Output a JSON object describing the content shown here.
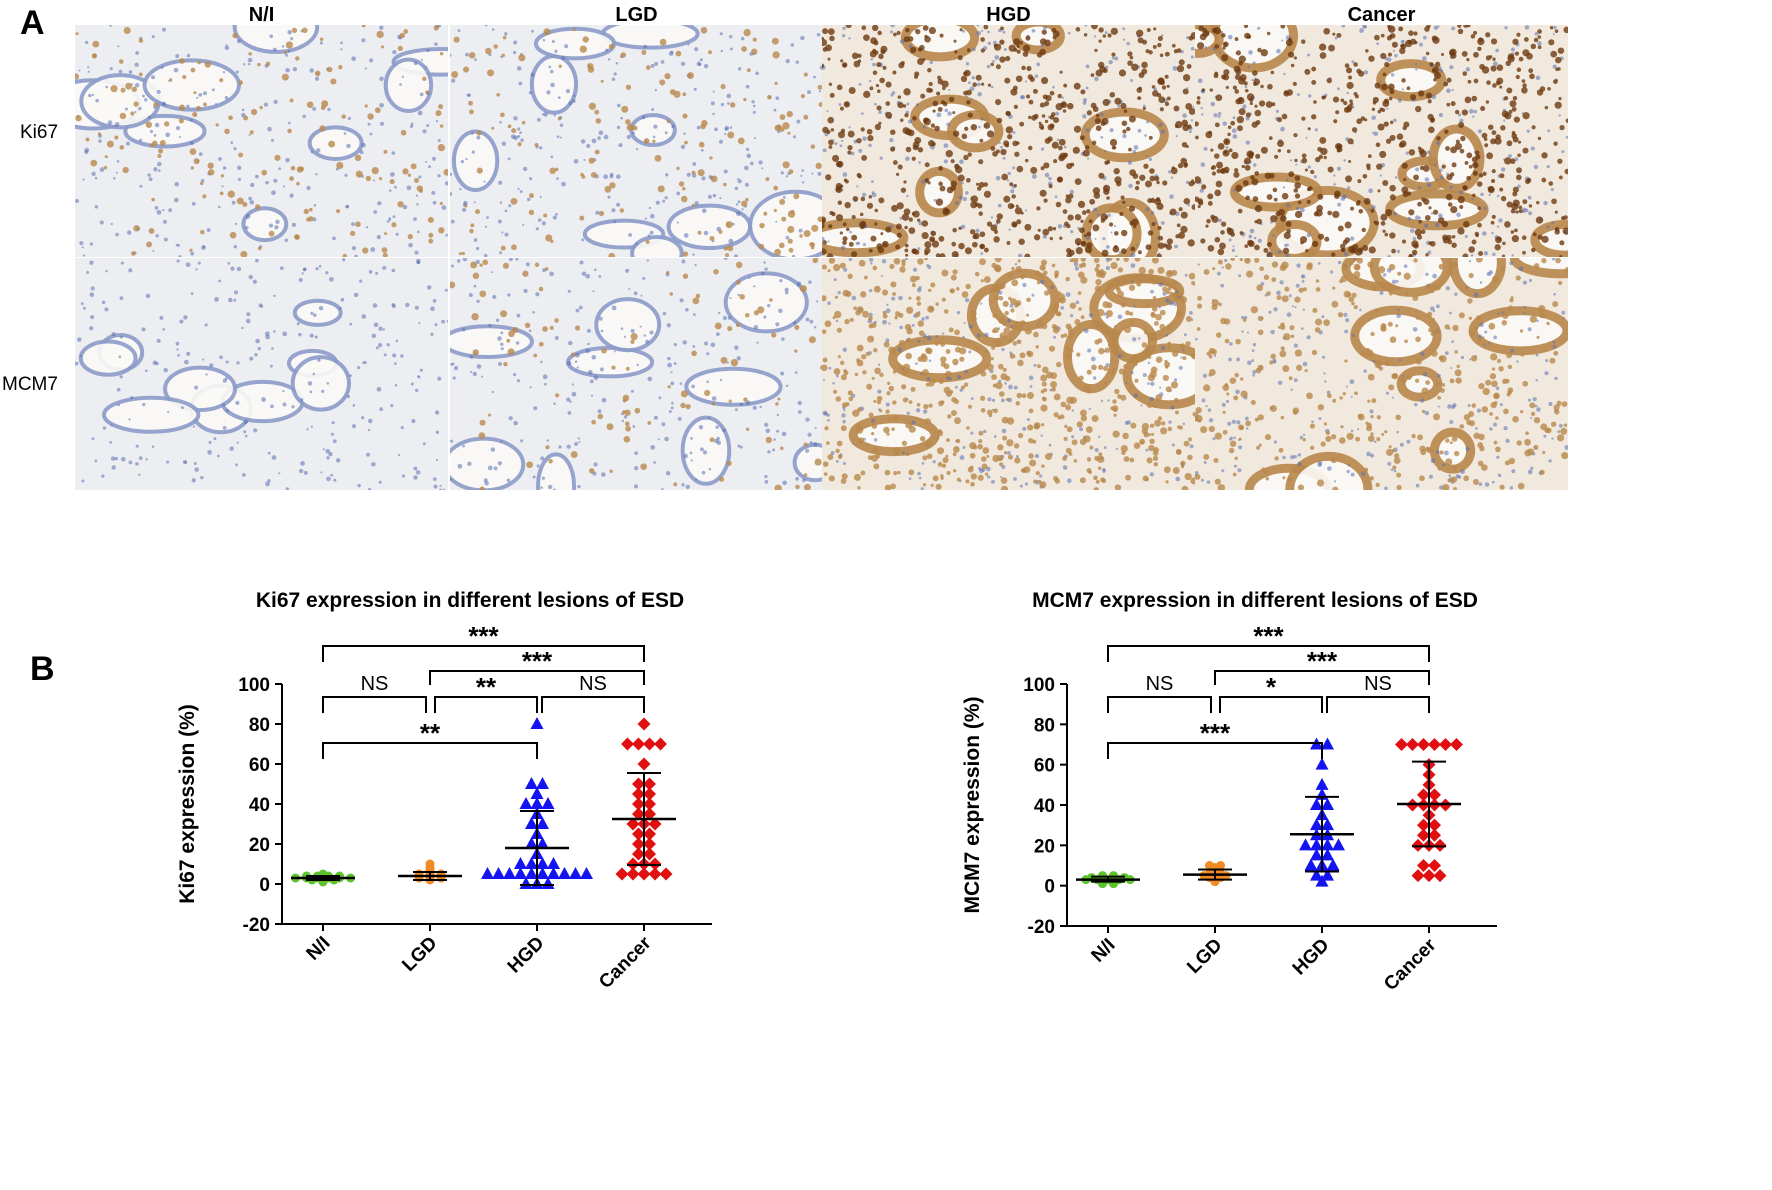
{
  "panel_a": {
    "letter": "A",
    "columns": [
      "N/I",
      "LGD",
      "HGD",
      "Cancer"
    ],
    "rows": [
      "Ki67",
      "MCM7"
    ],
    "stain_intensity": {
      "Ki67": [
        "low",
        "low",
        "high",
        "high"
      ],
      "MCM7": [
        "none",
        "low",
        "high",
        "moderate"
      ]
    },
    "colors": {
      "hematoxylin": "#5a6fb0",
      "dab_dark": "#6e3a10",
      "dab_light": "#b9884c",
      "background": "#f6f3ee"
    }
  },
  "panel_b": {
    "letter": "B",
    "colors": {
      "N/I": "#5cc42b",
      "LGD": "#f08a24",
      "HGD": "#1414f0",
      "Cancer": "#e01010"
    }
  },
  "chart_data": [
    {
      "type": "scatter",
      "title": "Ki67 expression in different lesions of ESD",
      "ylabel": "Ki67 expression (%)",
      "xlabel": "",
      "categories": [
        "N/I",
        "LGD",
        "HGD",
        "Cancer"
      ],
      "yticks": [
        "100",
        "80",
        "60",
        "40",
        "20",
        "0",
        "-20"
      ],
      "ylim": [
        -20,
        100
      ],
      "grid": false,
      "series": [
        {
          "category": "N/I",
          "marker": "circle",
          "values": [
            1,
            2,
            2,
            2,
            3,
            3,
            3,
            3,
            3,
            3,
            4,
            4,
            4,
            4,
            5
          ],
          "mean": 3,
          "sd_low": 2,
          "sd_high": 4
        },
        {
          "category": "LGD",
          "marker": "circle",
          "values": [
            2,
            3,
            3,
            3,
            4,
            4,
            4,
            5,
            5,
            5,
            6,
            7,
            8,
            10
          ],
          "mean": 4,
          "sd_low": 2,
          "sd_high": 6
        },
        {
          "category": "HGD",
          "marker": "triangle",
          "values": [
            0,
            0,
            0,
            5,
            5,
            5,
            5,
            5,
            5,
            5,
            5,
            5,
            5,
            10,
            10,
            10,
            10,
            15,
            20,
            20,
            25,
            30,
            30,
            35,
            40,
            40,
            40,
            45,
            50,
            50,
            80
          ],
          "mean": 18,
          "sd_low": -0.5,
          "sd_high": 36.5
        },
        {
          "category": "Cancer",
          "marker": "diamond",
          "values": [
            5,
            5,
            5,
            5,
            5,
            10,
            10,
            10,
            15,
            15,
            20,
            20,
            25,
            25,
            30,
            30,
            30,
            35,
            35,
            40,
            40,
            45,
            45,
            50,
            50,
            60,
            70,
            70,
            70,
            70,
            80
          ],
          "mean": 32.5,
          "sd_low": 9.5,
          "sd_high": 55.5
        }
      ],
      "comparisons": [
        {
          "groups": [
            "N/I",
            "Cancer"
          ],
          "label": "***"
        },
        {
          "groups": [
            "LGD",
            "Cancer"
          ],
          "label": "***"
        },
        {
          "groups": [
            "N/I",
            "LGD"
          ],
          "label": "NS"
        },
        {
          "groups": [
            "LGD",
            "HGD"
          ],
          "label": "**"
        },
        {
          "groups": [
            "HGD",
            "Cancer"
          ],
          "label": "NS"
        },
        {
          "groups": [
            "N/I",
            "HGD"
          ],
          "label": "**"
        }
      ]
    },
    {
      "type": "scatter",
      "title": "MCM7 expression in different lesions of ESD",
      "ylabel": "MCM7 expression (%)",
      "xlabel": "",
      "categories": [
        "N/I",
        "LGD",
        "HGD",
        "Cancer"
      ],
      "yticks": [
        "100",
        "80",
        "60",
        "40",
        "20",
        "0",
        "-20"
      ],
      "ylim": [
        -20,
        100
      ],
      "grid": false,
      "series": [
        {
          "category": "N/I",
          "marker": "circle",
          "values": [
            1,
            1,
            2,
            2,
            3,
            3,
            3,
            3,
            3,
            4,
            4,
            4,
            4,
            5,
            5
          ],
          "mean": 3,
          "sd_low": 2,
          "sd_high": 4.5
        },
        {
          "category": "LGD",
          "marker": "circle",
          "values": [
            2,
            3,
            4,
            4,
            5,
            5,
            5,
            6,
            6,
            7,
            8,
            9,
            10,
            10
          ],
          "mean": 5.5,
          "sd_low": 3,
          "sd_high": 8
        },
        {
          "category": "HGD",
          "marker": "triangle",
          "values": [
            2,
            5,
            5,
            10,
            10,
            10,
            15,
            15,
            20,
            20,
            20,
            20,
            25,
            25,
            30,
            30,
            35,
            40,
            40,
            45,
            50,
            60,
            70,
            70
          ],
          "mean": 25.5,
          "sd_low": 7,
          "sd_high": 44
        },
        {
          "category": "Cancer",
          "marker": "diamond",
          "values": [
            5,
            5,
            5,
            10,
            10,
            20,
            20,
            20,
            25,
            25,
            30,
            30,
            35,
            40,
            40,
            40,
            40,
            45,
            45,
            50,
            55,
            60,
            70,
            70,
            70,
            70,
            70,
            70
          ],
          "mean": 40.5,
          "sd_low": 19.5,
          "sd_high": 61.5
        }
      ],
      "comparisons": [
        {
          "groups": [
            "N/I",
            "Cancer"
          ],
          "label": "***"
        },
        {
          "groups": [
            "LGD",
            "Cancer"
          ],
          "label": "***"
        },
        {
          "groups": [
            "N/I",
            "LGD"
          ],
          "label": "NS"
        },
        {
          "groups": [
            "LGD",
            "HGD"
          ],
          "label": "*"
        },
        {
          "groups": [
            "HGD",
            "Cancer"
          ],
          "label": "NS"
        },
        {
          "groups": [
            "N/I",
            "HGD"
          ],
          "label": "***"
        }
      ]
    }
  ]
}
